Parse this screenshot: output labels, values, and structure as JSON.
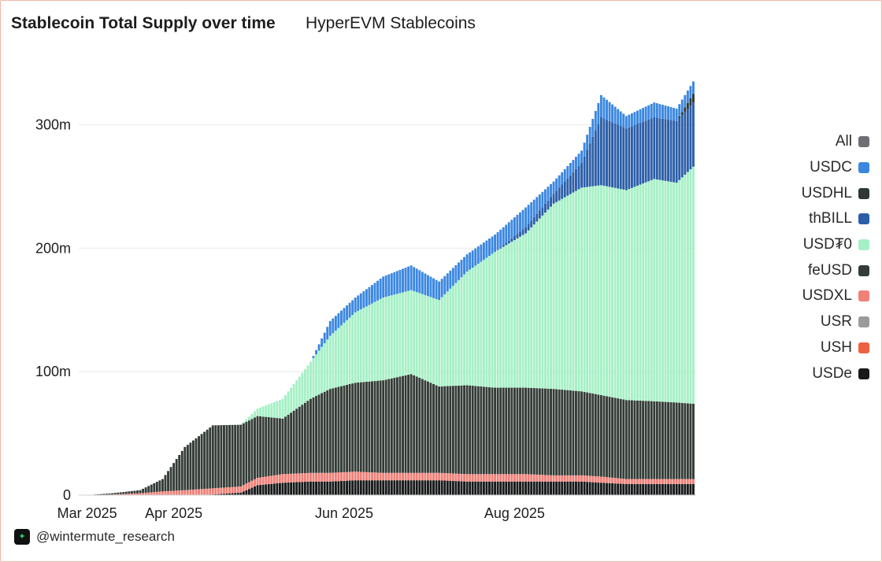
{
  "header": {
    "title": "Stablecoin Total Supply over time",
    "subtitle": "HyperEVM Stablecoins"
  },
  "footer": {
    "handle": "@wintermute_research",
    "logo_icon": "wintermute-logo-icon"
  },
  "chart_data": {
    "type": "bar",
    "stacked": true,
    "title": "Stablecoin Total Supply over time",
    "subtitle": "HyperEVM Stablecoins",
    "x_range": [
      "2025-02-26",
      "2025-10-05"
    ],
    "x_ticks": [
      {
        "date": "2025-03-01",
        "label": "Mar 2025"
      },
      {
        "date": "2025-04-01",
        "label": "Apr 2025"
      },
      {
        "date": "2025-06-01",
        "label": "Jun 2025"
      },
      {
        "date": "2025-08-01",
        "label": "Aug 2025"
      }
    ],
    "y_ticks": [
      {
        "value": 0,
        "label": "0"
      },
      {
        "value": 100,
        "label": "100m"
      },
      {
        "value": 200,
        "label": "200m"
      },
      {
        "value": 300,
        "label": "300m"
      }
    ],
    "y_unit": "m",
    "ylim": [
      0,
      350
    ],
    "grid": true,
    "legend_position": "right",
    "legend": [
      {
        "name": "All",
        "color": "#6e6e73"
      },
      {
        "name": "USDC",
        "color": "#3b87e0"
      },
      {
        "name": "USDHL",
        "color": "#2f3833"
      },
      {
        "name": "thBILL",
        "color": "#2c5ea8"
      },
      {
        "name": "USD₮0",
        "color": "#a5f0c5"
      },
      {
        "name": "feUSD",
        "color": "#343c37"
      },
      {
        "name": "USDXL",
        "color": "#f08078"
      },
      {
        "name": "USR",
        "color": "#9b9b9b"
      },
      {
        "name": "USH",
        "color": "#ee6140"
      },
      {
        "name": "USDe",
        "color": "#17191a"
      }
    ],
    "bar_series": [
      {
        "name": "USDe",
        "color": "#17191a"
      },
      {
        "name": "USDXL",
        "color": "#f08078"
      },
      {
        "name": "feUSD",
        "color": "#343c37"
      },
      {
        "name": "USD₮0",
        "color": "#a5f0c5"
      },
      {
        "name": "thBILL",
        "color": "#2c5ea8"
      },
      {
        "name": "USDHL",
        "color": "#2f3833"
      },
      {
        "name": "USDC",
        "color": "#3b87e0"
      }
    ],
    "keyframes": [
      {
        "date": "2025-03-01",
        "values": [
          0,
          0,
          0,
          0,
          0,
          0,
          0
        ]
      },
      {
        "date": "2025-03-10",
        "values": [
          0,
          0.5,
          1,
          0,
          0,
          0,
          0
        ]
      },
      {
        "date": "2025-03-20",
        "values": [
          0,
          1.5,
          2.5,
          0,
          0,
          0,
          0
        ]
      },
      {
        "date": "2025-03-28",
        "values": [
          0,
          3,
          10,
          0,
          0,
          0,
          0
        ]
      },
      {
        "date": "2025-04-05",
        "values": [
          0,
          4,
          35,
          0,
          0,
          0,
          0
        ]
      },
      {
        "date": "2025-04-15",
        "values": [
          0.5,
          5,
          51,
          0,
          0,
          0,
          0
        ]
      },
      {
        "date": "2025-04-25",
        "values": [
          2,
          5,
          50,
          0,
          0,
          0,
          0
        ]
      },
      {
        "date": "2025-05-01",
        "values": [
          8,
          6,
          50,
          6,
          0,
          0,
          0
        ]
      },
      {
        "date": "2025-05-10",
        "values": [
          10,
          7,
          45,
          16,
          0,
          0,
          0
        ]
      },
      {
        "date": "2025-05-20",
        "values": [
          11,
          7,
          60,
          30,
          0,
          0,
          0
        ]
      },
      {
        "date": "2025-05-27",
        "values": [
          11,
          7,
          68,
          43,
          0,
          0,
          12
        ]
      },
      {
        "date": "2025-06-05",
        "values": [
          12,
          7,
          72,
          57,
          0,
          0,
          12
        ]
      },
      {
        "date": "2025-06-15",
        "values": [
          12,
          6,
          75,
          67,
          0,
          0,
          17
        ]
      },
      {
        "date": "2025-06-25",
        "values": [
          12,
          6,
          80,
          68,
          0,
          0,
          20
        ]
      },
      {
        "date": "2025-07-05",
        "values": [
          12,
          6,
          70,
          70,
          0,
          0,
          15
        ]
      },
      {
        "date": "2025-07-15",
        "values": [
          11,
          6,
          72,
          92,
          0,
          0,
          14
        ]
      },
      {
        "date": "2025-07-25",
        "values": [
          11,
          6,
          70,
          110,
          0,
          0,
          14
        ]
      },
      {
        "date": "2025-08-05",
        "values": [
          11,
          6,
          70,
          125,
          5,
          0,
          16
        ]
      },
      {
        "date": "2025-08-15",
        "values": [
          11,
          5,
          70,
          150,
          8,
          0,
          10
        ]
      },
      {
        "date": "2025-08-25",
        "values": [
          11,
          5,
          68,
          165,
          20,
          0,
          10
        ]
      },
      {
        "date": "2025-09-01",
        "values": [
          10,
          5,
          66,
          170,
          55,
          0,
          18
        ]
      },
      {
        "date": "2025-09-10",
        "values": [
          9,
          4,
          64,
          170,
          50,
          0,
          10
        ]
      },
      {
        "date": "2025-09-20",
        "values": [
          9,
          4,
          63,
          180,
          50,
          0,
          12
        ]
      },
      {
        "date": "2025-09-28",
        "values": [
          9,
          4,
          62,
          178,
          50,
          0,
          10
        ]
      },
      {
        "date": "2025-10-04",
        "values": [
          9,
          4,
          61,
          192,
          52,
          7,
          10
        ]
      }
    ]
  }
}
